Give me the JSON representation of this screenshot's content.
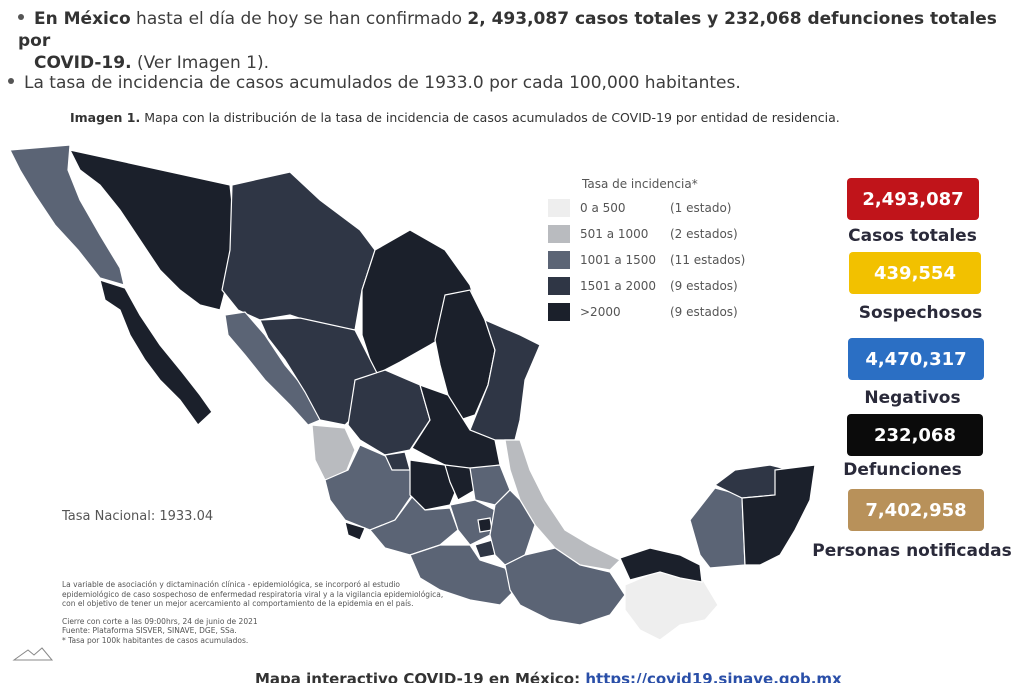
{
  "bullets": {
    "b1": {
      "strong1": "En México",
      "text1": " hasta el día de hoy se han confirmado ",
      "strong2": "2, 493,087 casos totales y 232,068 defunciones totales por",
      "strong3": "COVID-19.",
      "text2": " (Ver Imagen 1)."
    },
    "b2": "La tasa de incidencia de casos acumulados de 1933.0 por cada 100,000 habitantes."
  },
  "caption": {
    "label": "Imagen 1.",
    "text": " Mapa con la distribución de la tasa de incidencia de casos acumulados de COVID-19 por entidad de residencia."
  },
  "legend": {
    "title": "Tasa de incidencia*",
    "rows": [
      {
        "range": "0 a   500",
        "count": "(1 estado)",
        "color": "#eeeeee"
      },
      {
        "range": "501 a  1000",
        "count": "(2 estados)",
        "color": "#b9bbbf"
      },
      {
        "range": "1001 a  1500",
        "count": "(11 estados)",
        "color": "#5b6475"
      },
      {
        "range": "1501 a  2000",
        "count": "(9 estados)",
        "color": "#2f3645"
      },
      {
        "range": ">2000",
        "count": "(9 estados)",
        "color": "#1b202b"
      }
    ]
  },
  "tasa_nacional": "Tasa Nacional: 1933.04",
  "notes": [
    "La variable de asociación y dictaminación clínica - epidemiológica, se incorporó al estudio",
    "epidemiológico de caso sospechoso de enfermedad respiratoria viral y a la vigilancia epidemiológica,",
    "con el objetivo de tener un mejor acercamiento al comportamiento de la epidemia en el país.",
    "Cierre con corte a las 09:00hrs, 24 de junio de 2021",
    "Fuente: Plataforma SISVER, SINAVE, DGE, SSa.",
    "* Tasa por 100k habitantes de casos acumulados."
  ],
  "stats": [
    {
      "value": "2,493,087",
      "label": "Casos totales",
      "color": "#c0141a"
    },
    {
      "value": "439,554",
      "label": "Sospechosos",
      "color": "#f2c100"
    },
    {
      "value": "4,470,317",
      "label": "Negativos",
      "color": "#2b6fc4"
    },
    {
      "value": "232,068",
      "label": "Defunciones",
      "color": "#0b0b0b"
    },
    {
      "value": "7,402,958",
      "label": "Personas notificadas",
      "color": "#b8915a"
    }
  ],
  "footer": {
    "text": "Mapa interactivo COVID-19 en México: ",
    "link": "https://covid19.sinave.gob.mx"
  },
  "map_colors": {
    "lightest": "#eeeeee",
    "light": "#b9bbbf",
    "mid": "#5b6475",
    "dark": "#2f3645",
    "darkest": "#1b202b"
  }
}
